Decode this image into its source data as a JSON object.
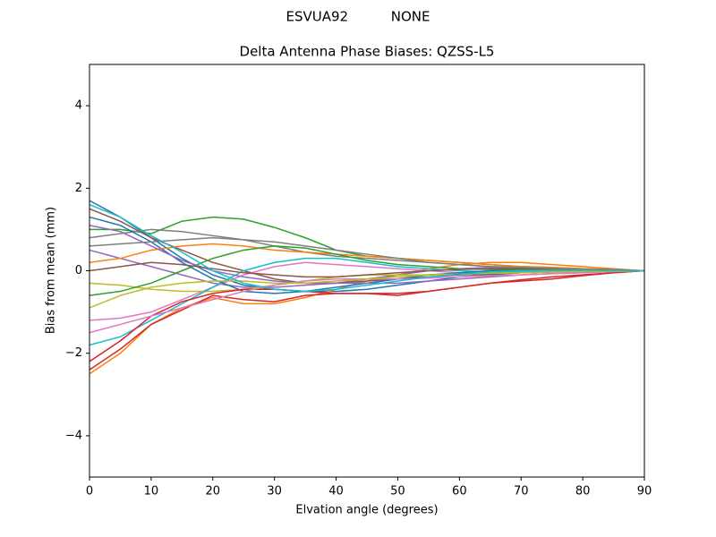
{
  "chart_data": {
    "type": "line",
    "suptitle": "ESVUA92          NONE",
    "title": "Delta Antenna Phase Biases: QZSS-L5",
    "xlabel": "Elvation angle (degrees)",
    "ylabel": "Bias from mean (mm)",
    "x": [
      0,
      5,
      10,
      15,
      20,
      25,
      30,
      35,
      40,
      45,
      50,
      55,
      60,
      65,
      70,
      75,
      80,
      85,
      90
    ],
    "xlim": [
      0,
      90
    ],
    "xticks": [
      0,
      10,
      20,
      30,
      40,
      50,
      60,
      70,
      80,
      90
    ],
    "ylim": [
      -5,
      5
    ],
    "yticks": [
      {
        "value": -4,
        "label": "−4"
      },
      {
        "value": -2,
        "label": "−2"
      },
      0,
      2,
      4
    ],
    "grid": false,
    "series": [
      {
        "color": "#1f77b4",
        "values": [
          1.7,
          1.3,
          0.8,
          0.3,
          -0.1,
          -0.35,
          -0.45,
          -0.5,
          -0.5,
          -0.45,
          -0.35,
          -0.25,
          -0.15,
          -0.1,
          -0.05,
          -0.03,
          0,
          0,
          0
        ]
      },
      {
        "color": "#ff7f0e",
        "values": [
          -2.5,
          -2.0,
          -1.3,
          -0.9,
          -0.65,
          -0.8,
          -0.8,
          -0.65,
          -0.45,
          -0.25,
          -0.1,
          0.05,
          0.15,
          0.2,
          0.2,
          0.15,
          0.1,
          0.05,
          0
        ]
      },
      {
        "color": "#2ca02c",
        "values": [
          1.0,
          1.0,
          0.9,
          1.2,
          1.3,
          1.25,
          1.05,
          0.8,
          0.5,
          0.35,
          0.3,
          0.25,
          0.2,
          0.15,
          0.1,
          0.08,
          0.05,
          0.03,
          0
        ]
      },
      {
        "color": "#d62728",
        "values": [
          -2.4,
          -1.9,
          -1.3,
          -0.95,
          -0.6,
          -0.7,
          -0.75,
          -0.6,
          -0.55,
          -0.55,
          -0.6,
          -0.5,
          -0.4,
          -0.3,
          -0.25,
          -0.2,
          -0.12,
          -0.05,
          0
        ]
      },
      {
        "color": "#9467bd",
        "values": [
          0.5,
          0.3,
          0.1,
          -0.1,
          -0.3,
          -0.4,
          -0.4,
          -0.35,
          -0.3,
          -0.2,
          -0.1,
          0,
          0.05,
          0.08,
          0.08,
          0.06,
          0.04,
          0.02,
          0
        ]
      },
      {
        "color": "#8c564b",
        "values": [
          1.5,
          1.2,
          0.8,
          0.5,
          0.2,
          0.0,
          -0.2,
          -0.3,
          -0.3,
          -0.25,
          -0.2,
          -0.15,
          -0.1,
          -0.08,
          -0.05,
          -0.03,
          -0.02,
          -0.01,
          0
        ]
      },
      {
        "color": "#e377c2",
        "values": [
          -1.2,
          -1.15,
          -1.0,
          -0.7,
          -0.4,
          -0.1,
          0.1,
          0.2,
          0.15,
          0.1,
          0.05,
          0.0,
          -0.05,
          -0.05,
          -0.05,
          -0.03,
          -0.02,
          -0.01,
          0
        ]
      },
      {
        "color": "#7f7f7f",
        "values": [
          0.8,
          0.9,
          1.0,
          0.95,
          0.85,
          0.75,
          0.6,
          0.45,
          0.35,
          0.3,
          0.25,
          0.2,
          0.15,
          0.1,
          0.08,
          0.06,
          0.04,
          0.02,
          0
        ]
      },
      {
        "color": "#bcbd22",
        "values": [
          -0.3,
          -0.35,
          -0.45,
          -0.5,
          -0.5,
          -0.45,
          -0.35,
          -0.25,
          -0.15,
          -0.1,
          -0.1,
          -0.1,
          -0.08,
          -0.06,
          -0.05,
          -0.03,
          -0.02,
          -0.01,
          0
        ]
      },
      {
        "color": "#17becf",
        "values": [
          -1.8,
          -1.6,
          -1.2,
          -0.8,
          -0.4,
          0.0,
          0.2,
          0.3,
          0.3,
          0.2,
          0.1,
          0.05,
          0.0,
          -0.03,
          -0.03,
          -0.02,
          -0.02,
          -0.01,
          0
        ]
      },
      {
        "color": "#1f77b4",
        "values": [
          1.3,
          1.1,
          0.7,
          0.2,
          -0.2,
          -0.5,
          -0.55,
          -0.5,
          -0.4,
          -0.3,
          -0.2,
          -0.1,
          -0.05,
          0,
          0.02,
          0.02,
          0.01,
          0.01,
          0
        ]
      },
      {
        "color": "#ff7f0e",
        "values": [
          0.2,
          0.3,
          0.5,
          0.6,
          0.65,
          0.6,
          0.5,
          0.45,
          0.4,
          0.35,
          0.3,
          0.25,
          0.2,
          0.15,
          0.1,
          0.08,
          0.05,
          0.02,
          0
        ]
      },
      {
        "color": "#2ca02c",
        "values": [
          -0.6,
          -0.5,
          -0.3,
          0.0,
          0.3,
          0.5,
          0.6,
          0.55,
          0.4,
          0.25,
          0.15,
          0.1,
          0.05,
          0.03,
          0.02,
          0.01,
          0.01,
          0,
          0
        ]
      },
      {
        "color": "#d62728",
        "values": [
          -2.2,
          -1.7,
          -1.1,
          -0.75,
          -0.55,
          -0.45,
          -0.45,
          -0.5,
          -0.55,
          -0.55,
          -0.55,
          -0.5,
          -0.4,
          -0.3,
          -0.22,
          -0.15,
          -0.1,
          -0.05,
          0
        ]
      },
      {
        "color": "#9467bd",
        "values": [
          1.1,
          0.95,
          0.6,
          0.25,
          0.0,
          -0.15,
          -0.25,
          -0.3,
          -0.3,
          -0.3,
          -0.3,
          -0.25,
          -0.2,
          -0.15,
          -0.1,
          -0.07,
          -0.05,
          -0.02,
          0
        ]
      },
      {
        "color": "#8c564b",
        "values": [
          0.0,
          0.1,
          0.2,
          0.15,
          0.05,
          -0.05,
          -0.1,
          -0.15,
          -0.15,
          -0.1,
          -0.05,
          0,
          0.03,
          0.05,
          0.05,
          0.04,
          0.03,
          0.01,
          0
        ]
      },
      {
        "color": "#e377c2",
        "values": [
          -1.5,
          -1.3,
          -1.1,
          -0.9,
          -0.7,
          -0.5,
          -0.35,
          -0.25,
          -0.2,
          -0.2,
          -0.2,
          -0.18,
          -0.15,
          -0.12,
          -0.1,
          -0.07,
          -0.05,
          -0.02,
          0
        ]
      },
      {
        "color": "#7f7f7f",
        "values": [
          0.6,
          0.65,
          0.7,
          0.75,
          0.8,
          0.75,
          0.7,
          0.6,
          0.5,
          0.4,
          0.3,
          0.2,
          0.15,
          0.1,
          0.08,
          0.06,
          0.04,
          0.02,
          0
        ]
      },
      {
        "color": "#bcbd22",
        "values": [
          -0.9,
          -0.6,
          -0.4,
          -0.3,
          -0.25,
          -0.25,
          -0.3,
          -0.3,
          -0.25,
          -0.2,
          -0.15,
          -0.1,
          -0.08,
          -0.06,
          -0.05,
          -0.03,
          -0.02,
          -0.01,
          0
        ]
      },
      {
        "color": "#17becf",
        "values": [
          1.6,
          1.3,
          0.85,
          0.45,
          0.0,
          -0.3,
          -0.45,
          -0.5,
          -0.45,
          -0.35,
          -0.25,
          -0.15,
          -0.08,
          -0.03,
          0,
          0.01,
          0.01,
          0,
          0
        ]
      }
    ]
  }
}
